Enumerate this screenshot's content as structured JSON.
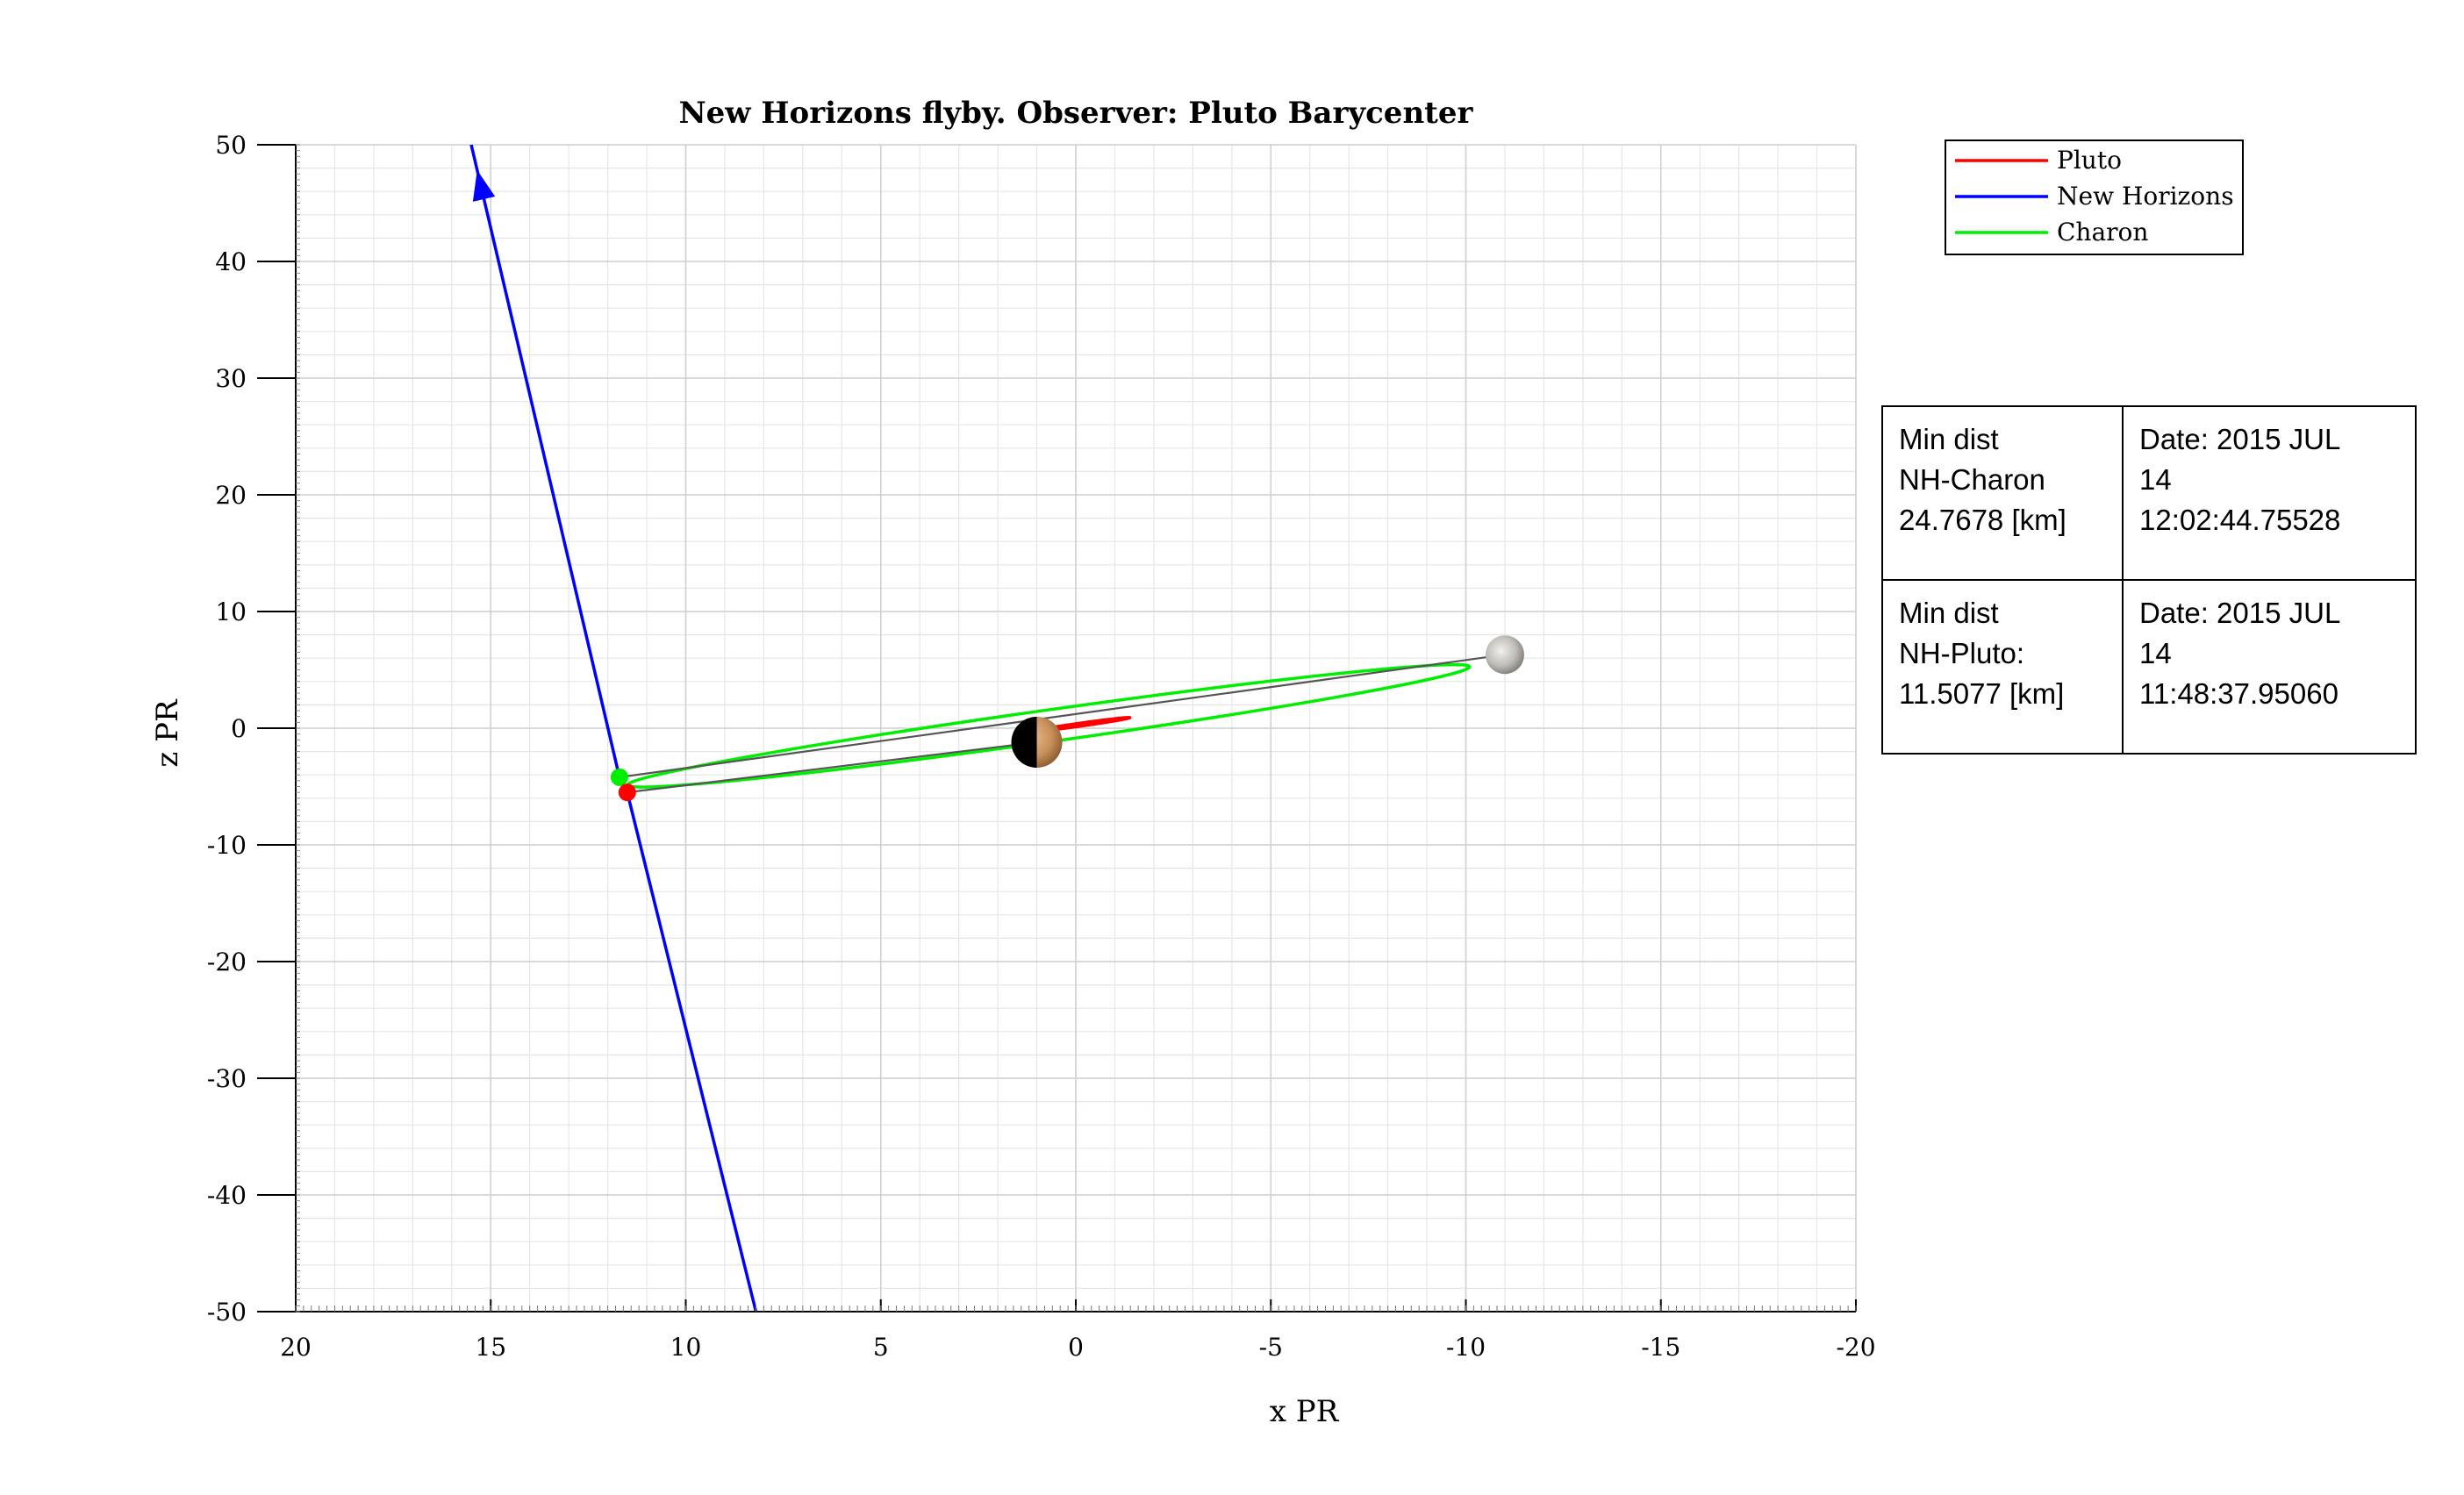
{
  "chart_data": {
    "type": "line",
    "title": "New Horizons flyby. Observer: Pluto Barycenter",
    "xlabel": "x PR",
    "ylabel": "z PR",
    "xlim": [
      20,
      -20
    ],
    "ylim": [
      -50,
      50
    ],
    "x_ticks": [
      20,
      15,
      10,
      5,
      0,
      -5,
      -10,
      -15,
      -20
    ],
    "x_tick_labels": [
      "20",
      "15",
      "10",
      "5",
      "0",
      "-5",
      "-10",
      "-15",
      "-20"
    ],
    "y_ticks": [
      50,
      40,
      30,
      20,
      10,
      0,
      -10,
      -20,
      -30,
      -40,
      -50
    ],
    "y_tick_labels": [
      "50",
      "40",
      "30",
      "20",
      "10",
      "0",
      "-10",
      "-20",
      "-30",
      "-40",
      "-50"
    ],
    "grid": true,
    "legend": {
      "position": "top-right",
      "entries": [
        {
          "name": "Pluto",
          "color": "#ff0000"
        },
        {
          "name": "New Horizons",
          "color": "#0000ff"
        },
        {
          "name": "Charon",
          "color": "#00ee00"
        }
      ]
    },
    "series": [
      {
        "name": "New Horizons",
        "color": "#0000ff",
        "x": [
          15.5,
          11.7,
          11.5,
          8.2
        ],
        "z": [
          50,
          -4.2,
          -5.5,
          -50
        ],
        "arrow_at_end": "start"
      },
      {
        "name": "Pluto",
        "color": "#ff0000",
        "ellipse": {
          "cx": -0.1,
          "cz": 0.3,
          "rx": 1.3,
          "rz": 1.3,
          "tilt_deg": 8
        }
      },
      {
        "name": "Charon",
        "color": "#00ee00",
        "ellipse": {
          "cx": 0.7,
          "cz": 0.2,
          "rx": 10.9,
          "rz": 13.6,
          "tilt_deg": 8
        }
      }
    ],
    "connectors": [
      {
        "from": [
          11.7,
          -4.2
        ],
        "to": [
          -11.0,
          6.3
        ],
        "color": "#555555"
      },
      {
        "from": [
          11.5,
          -5.5
        ],
        "to": [
          1.0,
          -1.2
        ],
        "color": "#555555"
      }
    ],
    "markers": [
      {
        "name": "New Horizons at closest Charon",
        "x": 11.7,
        "z": -4.2,
        "color": "#00ee00"
      },
      {
        "name": "New Horizons at closest Pluto",
        "x": 11.5,
        "z": -5.5,
        "color": "#ff0000"
      }
    ],
    "bodies": [
      {
        "name": "Pluto",
        "x": 1.0,
        "z": -1.2
      },
      {
        "name": "Charon",
        "x": -11.0,
        "z": 6.3
      }
    ]
  },
  "info_table": {
    "rows": [
      {
        "c1": [
          "Min dist",
          "NH-Charon",
          "24.7678 [km]"
        ],
        "c2": [
          "Date: 2015 JUL",
          "14",
          "12:02:44.75528"
        ]
      },
      {
        "c1": [
          "Min dist",
          "NH-Pluto:",
          "11.5077 [km]"
        ],
        "c2": [
          "Date: 2015 JUL",
          "14",
          "11:48:37.95060"
        ]
      }
    ]
  },
  "colors": {
    "grid_minor": "#e6e6e6",
    "grid_major": "#d0d0d0",
    "pluto_body": "#c8905a",
    "charon_body": "#bfbcb8"
  }
}
